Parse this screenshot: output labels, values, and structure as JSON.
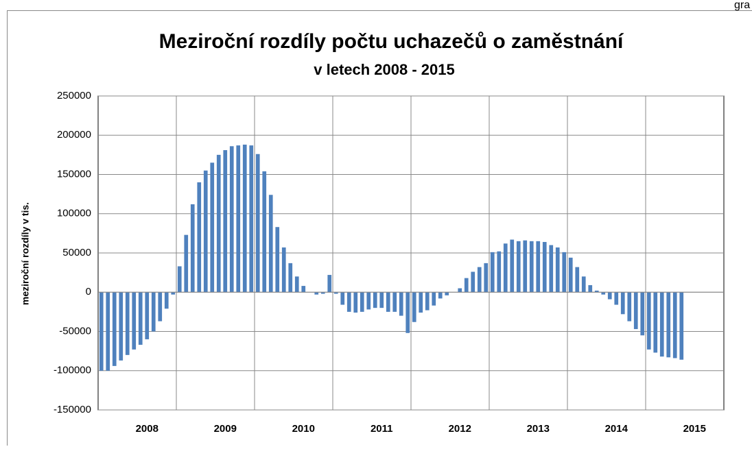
{
  "corner_text": "gra",
  "chart_data": {
    "type": "bar",
    "title": "Meziroční rozdíly počtu uchazečů o zaměstnání",
    "subtitle": "v letech 2008 - 2015",
    "y_label": "meziroční rozdíly v tis.",
    "color": "#4f81bd",
    "grid": true,
    "categories": [
      null,
      null,
      null,
      null,
      null,
      null,
      null,
      "2008",
      null,
      null,
      null,
      null,
      null,
      null,
      null,
      null,
      null,
      null,
      null,
      "2009",
      null,
      null,
      null,
      null,
      null,
      null,
      null,
      null,
      null,
      null,
      null,
      "2010",
      null,
      null,
      null,
      null,
      null,
      null,
      null,
      null,
      null,
      null,
      null,
      "2011",
      null,
      null,
      null,
      null,
      null,
      null,
      null,
      null,
      null,
      null,
      null,
      "2012",
      null,
      null,
      null,
      null,
      null,
      null,
      null,
      null,
      null,
      null,
      null,
      "2013",
      null,
      null,
      null,
      null,
      null,
      null,
      null,
      null,
      null,
      null,
      null,
      "2014",
      null,
      null,
      null,
      null,
      null,
      null,
      null,
      null,
      null,
      null,
      null,
      "2015",
      null,
      null,
      null,
      null
    ],
    "values": [
      -100000,
      -100000,
      -94000,
      -87000,
      -80000,
      -73000,
      -67000,
      -60000,
      -50000,
      -37000,
      -21000,
      -3000,
      33000,
      73000,
      112000,
      140000,
      155000,
      165000,
      175000,
      181000,
      186000,
      187000,
      188000,
      187000,
      176000,
      154000,
      124000,
      83000,
      57000,
      37000,
      20000,
      8000,
      0,
      -3000,
      -2000,
      22000,
      -2000,
      -16000,
      -25000,
      -26000,
      -25000,
      -22000,
      -20000,
      -20000,
      -25000,
      -25000,
      -30000,
      -52000,
      -38000,
      -26000,
      -23000,
      -17000,
      -8000,
      -4000,
      0,
      5000,
      18000,
      26000,
      32000,
      37000,
      51000,
      52000,
      62000,
      67000,
      65000,
      66000,
      65000,
      65000,
      64000,
      60000,
      57000,
      51000,
      44000,
      32000,
      20000,
      9000,
      2000,
      -3000,
      -9000,
      -16000,
      -28000,
      -37000,
      -47000,
      -55000,
      -73000,
      -77000,
      -82000,
      -83000,
      -84000,
      -86000,
      null,
      null,
      null,
      null,
      null,
      null
    ],
    "ylim": [
      -150000,
      250000
    ],
    "yticks": [
      -150000,
      -100000,
      -50000,
      0,
      50000,
      100000,
      150000,
      200000,
      250000
    ]
  }
}
